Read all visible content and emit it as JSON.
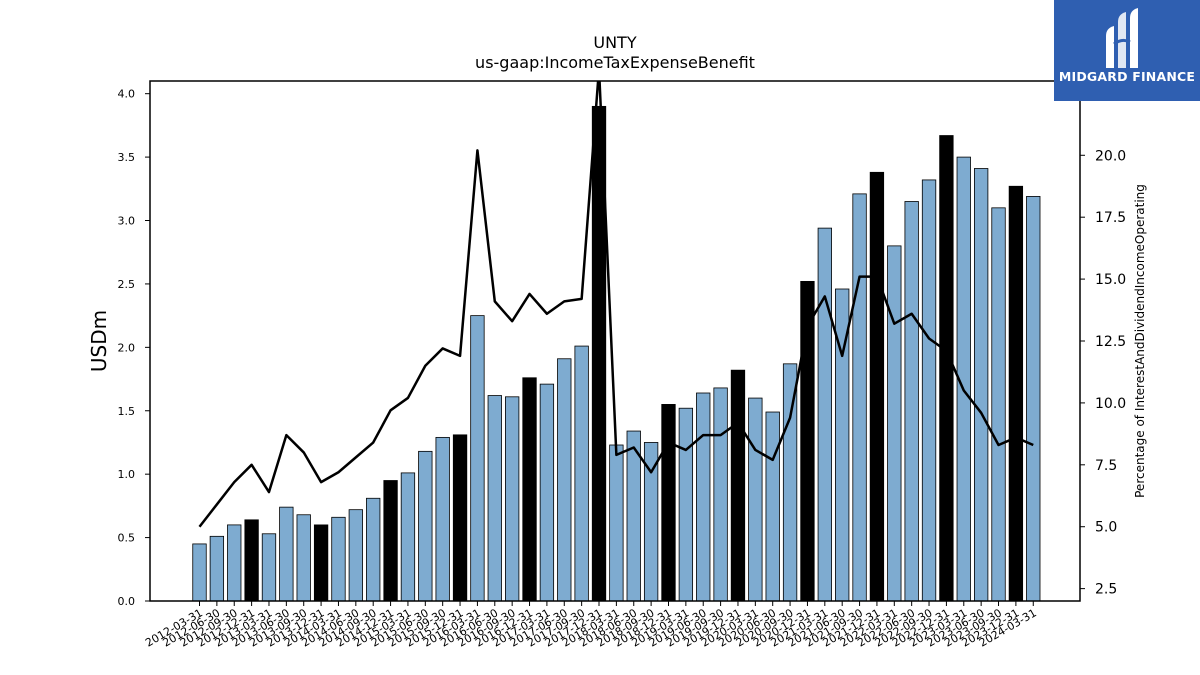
{
  "chart_data": {
    "type": "bar+line",
    "title": "UNTY",
    "subtitle": "us-gaap:IncomeTaxExpenseBenefit",
    "ylabel": "USDm",
    "y2label": "Percentage of InterestAndDividendIncomeOperating",
    "ylim": [
      0,
      4.1
    ],
    "y2lim": [
      2.0,
      23.0
    ],
    "yticks": [
      "0.0",
      "0.5",
      "1.0",
      "1.5",
      "2.0",
      "2.5",
      "3.0",
      "3.5",
      "4.0"
    ],
    "y2ticks": [
      "2.5",
      "5.0",
      "7.5",
      "10.0",
      "12.5",
      "15.0",
      "17.5",
      "20.0",
      "22.5"
    ],
    "colors": {
      "bar": "#7eabd0",
      "bar_q4": "#000000",
      "line": "#000000"
    },
    "categories": [
      "2012-03-31",
      "2012-06-30",
      "2012-09-30",
      "2012-12-31",
      "2013-03-31",
      "2013-06-30",
      "2013-09-30",
      "2013-12-31",
      "2014-03-31",
      "2014-06-30",
      "2014-09-30",
      "2014-12-31",
      "2015-03-31",
      "2015-06-30",
      "2015-09-30",
      "2015-12-31",
      "2016-03-31",
      "2016-06-30",
      "2016-09-30",
      "2016-12-31",
      "2017-03-31",
      "2017-06-30",
      "2017-09-30",
      "2017-12-31",
      "2018-03-31",
      "2018-06-30",
      "2018-09-30",
      "2018-12-31",
      "2019-03-31",
      "2019-06-30",
      "2019-09-30",
      "2019-12-31",
      "2020-03-31",
      "2020-06-30",
      "2020-09-30",
      "2020-12-31",
      "2021-03-31",
      "2021-06-30",
      "2021-09-30",
      "2021-12-31",
      "2022-03-31",
      "2022-06-30",
      "2022-09-30",
      "2022-12-31",
      "2023-03-31",
      "2023-06-30",
      "2023-09-30",
      "2023-12-31",
      "2024-03-31"
    ],
    "series": [
      {
        "values": [
          0.45,
          0.51,
          0.6,
          0.64,
          0.53,
          0.74,
          0.68,
          0.6,
          0.66,
          0.72,
          0.81,
          0.95,
          1.01,
          1.18,
          1.29,
          1.31,
          2.25,
          1.62,
          1.61,
          1.76,
          1.71,
          1.91,
          2.01,
          3.9,
          1.23,
          1.34,
          1.25,
          1.55,
          1.52,
          1.64,
          1.68,
          1.82,
          1.6,
          1.49,
          1.87,
          2.52,
          2.94,
          2.46,
          3.21,
          3.38,
          2.8,
          3.15,
          3.32,
          3.67,
          3.5,
          3.41,
          3.1,
          3.27,
          3.19
        ]
      },
      {
        "axis": "right",
        "values": [
          5.0,
          5.9,
          6.8,
          7.5,
          6.4,
          8.7,
          8.0,
          6.8,
          7.2,
          7.8,
          8.4,
          9.7,
          10.2,
          11.5,
          12.2,
          11.9,
          20.2,
          14.1,
          13.3,
          14.4,
          13.6,
          14.1,
          14.2,
          23.5,
          7.9,
          8.2,
          7.2,
          8.4,
          8.1,
          8.7,
          8.7,
          9.2,
          8.1,
          7.7,
          9.4,
          13.1,
          14.3,
          11.9,
          15.1,
          15.1,
          13.2,
          13.6,
          12.6,
          12.1,
          10.5,
          9.6,
          8.3,
          8.6,
          8.3
        ]
      }
    ]
  }
}
